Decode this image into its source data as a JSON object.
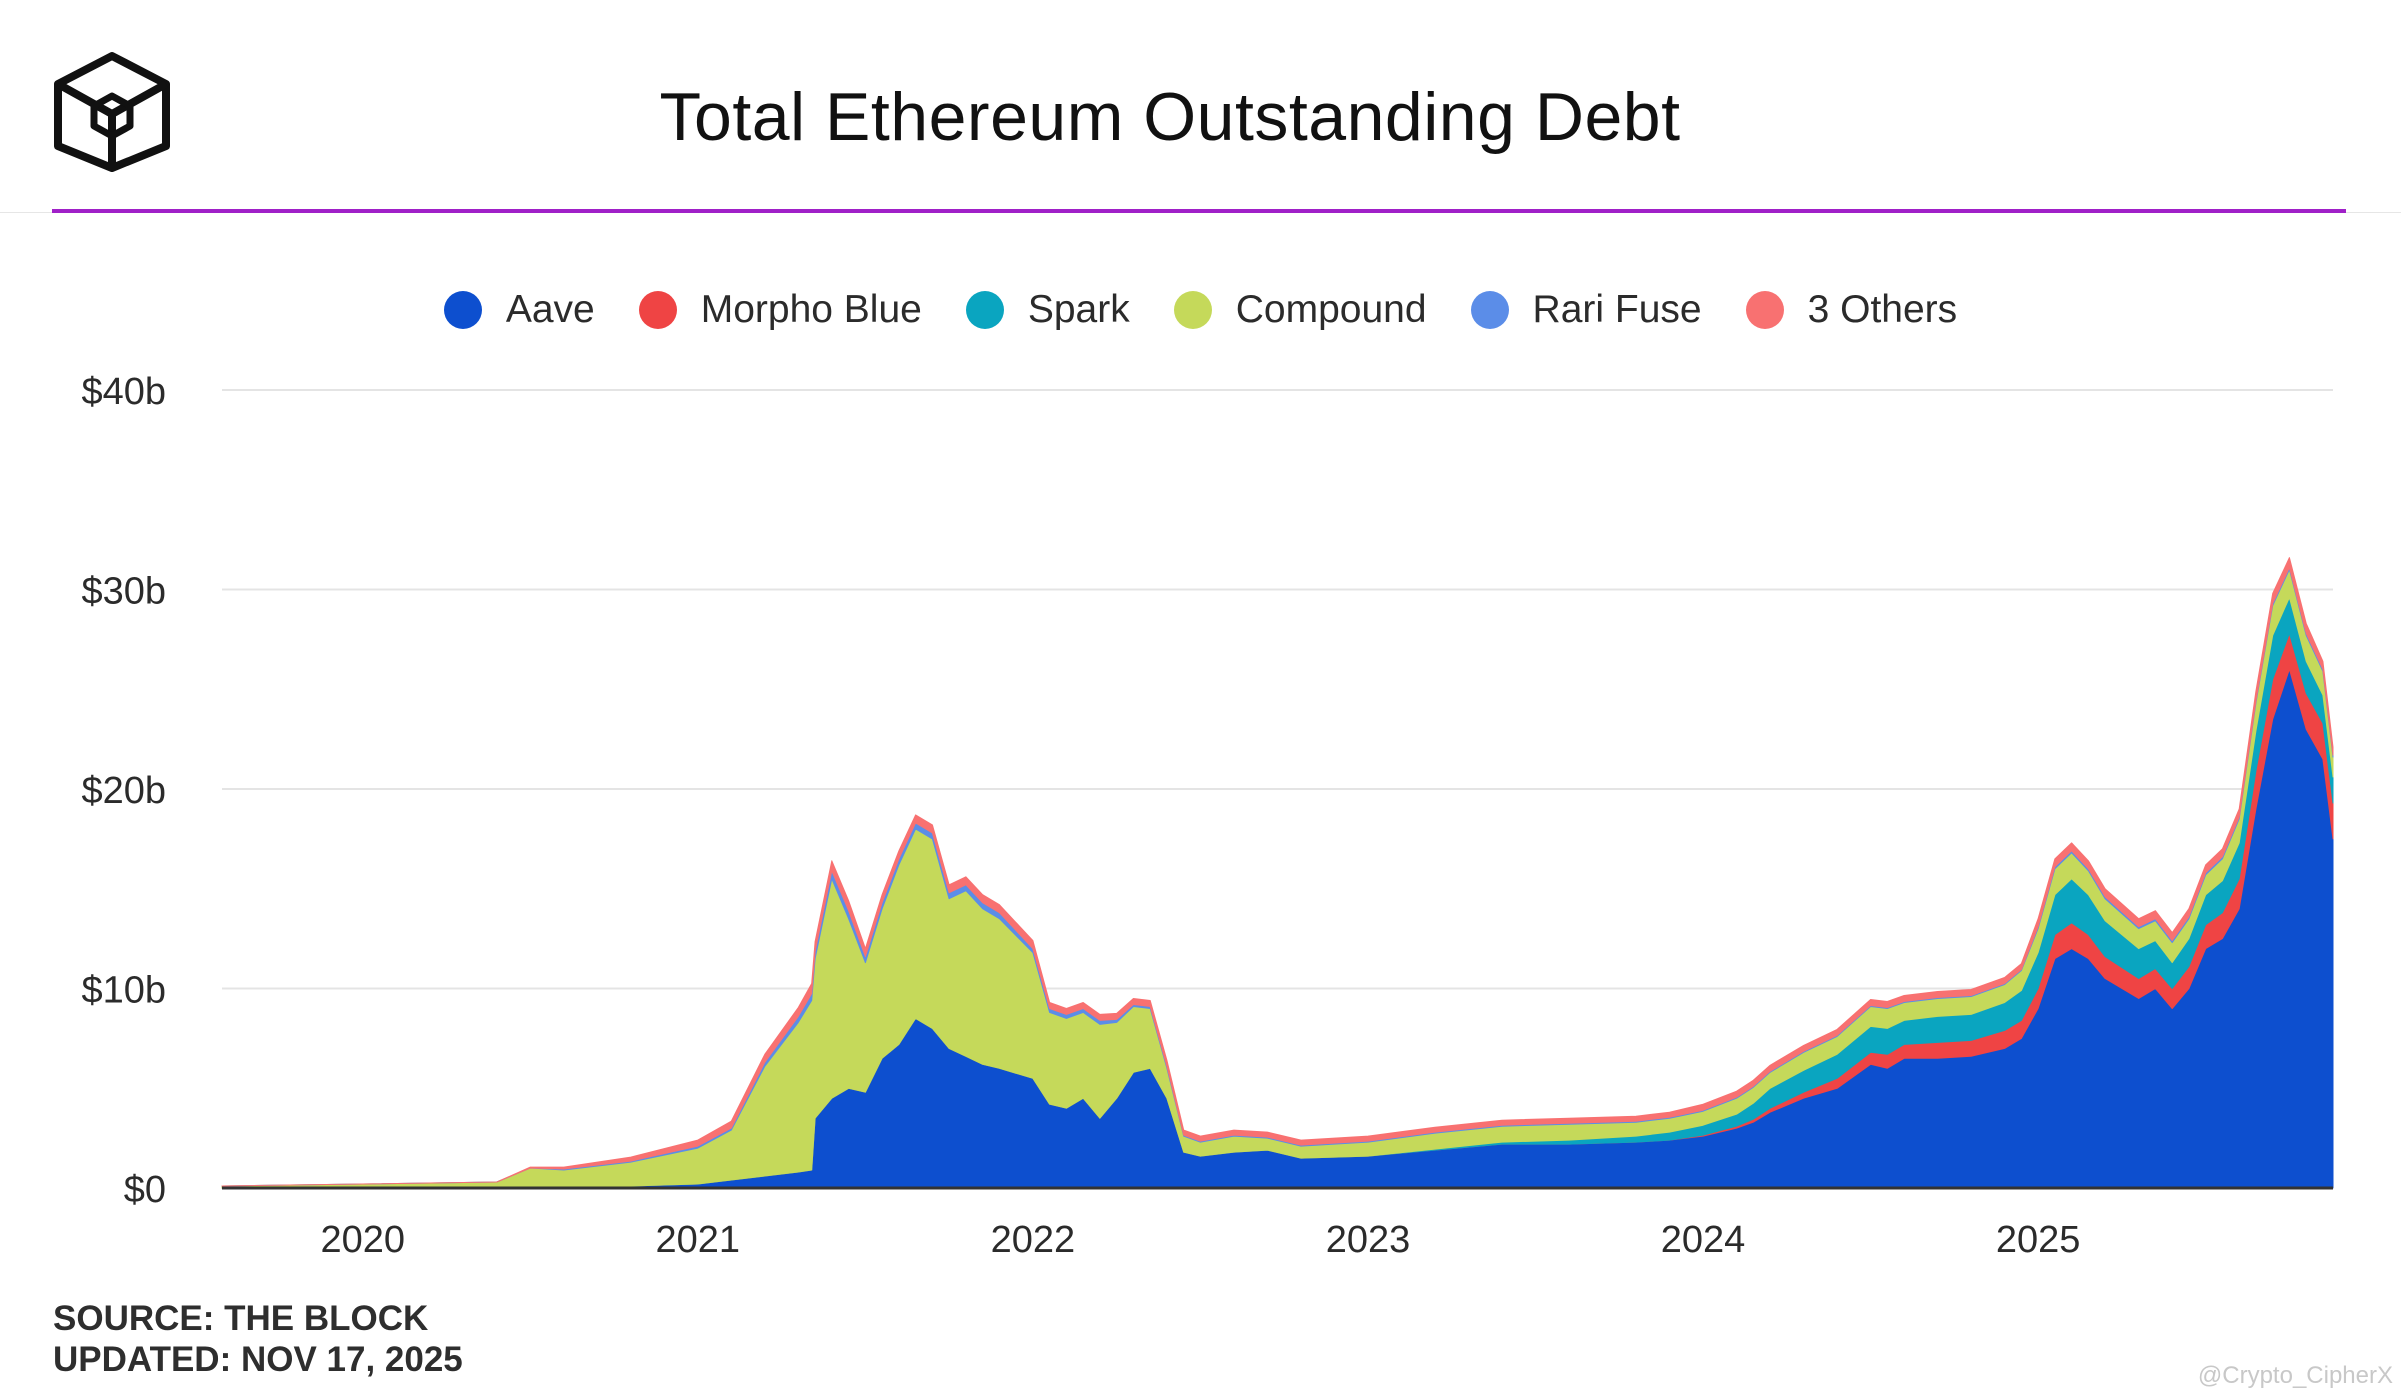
{
  "header": {
    "title": "Total Ethereum Outstanding Debt",
    "logo": "the-block-cube-logo",
    "accent_color": "#a020c8"
  },
  "legend": {
    "items": [
      {
        "label": "Aave",
        "color": "#0d4fcf"
      },
      {
        "label": "Morpho Blue",
        "color": "#ef4444"
      },
      {
        "label": "Spark",
        "color": "#0aa5c0"
      },
      {
        "label": "Compound",
        "color": "#c5d95a"
      },
      {
        "label": "Rari Fuse",
        "color": "#5b8de8"
      },
      {
        "label": "3 Others",
        "color": "#f87171"
      }
    ]
  },
  "footer": {
    "source": "SOURCE: THE BLOCK",
    "updated": "UPDATED: NOV 17, 2025"
  },
  "watermark": "@Crypto_CipherX",
  "chart_data": {
    "type": "area",
    "stacked": true,
    "title": "Total Ethereum Outstanding Debt",
    "xlabel": "",
    "ylabel": "",
    "ylim": [
      0,
      40
    ],
    "xlim": [
      2019.58,
      2025.88
    ],
    "y_unit": "billion USD",
    "yticks": [
      0,
      10,
      20,
      30,
      40
    ],
    "ytick_labels": [
      "$0",
      "$10b",
      "$20b",
      "$30b",
      "$40b"
    ],
    "xticks": [
      2020,
      2021,
      2022,
      2023,
      2024,
      2025
    ],
    "xtick_labels": [
      "2020",
      "2021",
      "2022",
      "2023",
      "2024",
      "2025"
    ],
    "grid": true,
    "legend_position": "top-center",
    "x": [
      2019.58,
      2020.0,
      2020.4,
      2020.5,
      2020.6,
      2020.8,
      2021.0,
      2021.1,
      2021.2,
      2021.3,
      2021.34,
      2021.35,
      2021.4,
      2021.45,
      2021.5,
      2021.55,
      2021.6,
      2021.65,
      2021.7,
      2021.75,
      2021.8,
      2021.85,
      2021.9,
      2022.0,
      2022.05,
      2022.1,
      2022.15,
      2022.2,
      2022.25,
      2022.3,
      2022.35,
      2022.4,
      2022.45,
      2022.5,
      2022.6,
      2022.7,
      2022.8,
      2023.0,
      2023.2,
      2023.4,
      2023.6,
      2023.8,
      2023.9,
      2024.0,
      2024.1,
      2024.15,
      2024.2,
      2024.3,
      2024.4,
      2024.5,
      2024.55,
      2024.6,
      2024.7,
      2024.8,
      2024.9,
      2024.95,
      2025.0,
      2025.05,
      2025.1,
      2025.15,
      2025.2,
      2025.3,
      2025.35,
      2025.4,
      2025.45,
      2025.5,
      2025.55,
      2025.6,
      2025.65,
      2025.7,
      2025.75,
      2025.8,
      2025.85,
      2025.88
    ],
    "series": [
      {
        "name": "Aave",
        "color": "#0d4fcf",
        "values": [
          0,
          0.05,
          0.1,
          0.1,
          0.1,
          0.1,
          0.2,
          0.4,
          0.6,
          0.8,
          0.9,
          3.5,
          4.5,
          5.0,
          4.8,
          6.5,
          7.2,
          8.5,
          8.0,
          7.0,
          6.6,
          6.2,
          6.0,
          5.5,
          4.2,
          4.0,
          4.5,
          3.5,
          4.5,
          5.8,
          6.0,
          4.5,
          1.8,
          1.6,
          1.8,
          1.9,
          1.5,
          1.6,
          1.9,
          2.2,
          2.2,
          2.3,
          2.4,
          2.6,
          3.0,
          3.3,
          3.8,
          4.5,
          5.0,
          6.2,
          6.0,
          6.5,
          6.5,
          6.6,
          7.0,
          7.5,
          9.0,
          11.5,
          12.0,
          11.5,
          10.5,
          9.5,
          10.0,
          9.0,
          10.0,
          12.0,
          12.5,
          14.0,
          19.0,
          23.5,
          26.0,
          23.0,
          21.5,
          17.5
        ]
      },
      {
        "name": "Morpho Blue",
        "color": "#ef4444",
        "values": [
          0,
          0,
          0,
          0,
          0,
          0,
          0,
          0,
          0,
          0,
          0,
          0,
          0,
          0,
          0,
          0,
          0,
          0,
          0,
          0,
          0,
          0,
          0,
          0,
          0,
          0,
          0,
          0,
          0,
          0,
          0,
          0,
          0,
          0,
          0,
          0,
          0,
          0,
          0,
          0,
          0,
          0,
          0,
          0.05,
          0.1,
          0.15,
          0.2,
          0.3,
          0.5,
          0.6,
          0.7,
          0.7,
          0.8,
          0.8,
          0.9,
          0.9,
          1.0,
          1.2,
          1.3,
          1.2,
          1.1,
          1.0,
          1.0,
          1.0,
          1.1,
          1.2,
          1.3,
          1.5,
          1.9,
          2.0,
          1.8,
          1.8,
          1.8,
          1.8
        ]
      },
      {
        "name": "Spark",
        "color": "#0aa5c0",
        "values": [
          0,
          0,
          0,
          0,
          0,
          0,
          0,
          0,
          0,
          0,
          0,
          0,
          0,
          0,
          0,
          0,
          0,
          0,
          0,
          0,
          0,
          0,
          0,
          0,
          0,
          0,
          0,
          0,
          0,
          0,
          0,
          0,
          0,
          0,
          0,
          0,
          0,
          0,
          0.05,
          0.1,
          0.2,
          0.3,
          0.4,
          0.5,
          0.6,
          0.8,
          1.0,
          1.1,
          1.2,
          1.3,
          1.3,
          1.2,
          1.3,
          1.3,
          1.4,
          1.5,
          1.8,
          2.0,
          2.2,
          2.0,
          1.8,
          1.5,
          1.4,
          1.3,
          1.4,
          1.5,
          1.6,
          1.8,
          2.0,
          2.2,
          1.8,
          1.6,
          1.4,
          1.3
        ]
      },
      {
        "name": "Compound",
        "color": "#c5d95a",
        "values": [
          0.1,
          0.15,
          0.2,
          0.9,
          0.8,
          1.2,
          1.8,
          2.5,
          5.5,
          7.5,
          8.5,
          8.0,
          11.0,
          8.5,
          6.5,
          7.5,
          9.0,
          9.5,
          9.5,
          7.5,
          8.3,
          7.8,
          7.5,
          6.3,
          4.6,
          4.5,
          4.3,
          4.7,
          3.8,
          3.3,
          3.0,
          1.5,
          0.8,
          0.7,
          0.8,
          0.6,
          0.6,
          0.7,
          0.8,
          0.8,
          0.8,
          0.7,
          0.7,
          0.7,
          0.8,
          0.8,
          0.8,
          0.9,
          0.9,
          1.0,
          1.0,
          0.9,
          0.9,
          0.9,
          0.9,
          1.0,
          1.2,
          1.3,
          1.3,
          1.2,
          1.1,
          1.0,
          1.0,
          1.0,
          1.0,
          1.0,
          1.1,
          1.2,
          1.4,
          1.5,
          1.4,
          1.3,
          1.2,
          1.0
        ]
      },
      {
        "name": "Rari Fuse",
        "color": "#5b8de8",
        "values": [
          0,
          0,
          0,
          0,
          0.05,
          0.05,
          0.1,
          0.1,
          0.2,
          0.3,
          0.35,
          0.35,
          0.4,
          0.4,
          0.3,
          0.3,
          0.3,
          0.3,
          0.3,
          0.3,
          0.3,
          0.3,
          0.3,
          0.2,
          0.2,
          0.2,
          0.2,
          0.2,
          0.15,
          0.1,
          0.1,
          0.1,
          0.05,
          0.05,
          0.05,
          0.05,
          0.05,
          0.05,
          0.05,
          0.05,
          0.05,
          0.05,
          0.05,
          0.05,
          0.05,
          0.05,
          0.05,
          0.05,
          0.05,
          0.05,
          0.05,
          0.05,
          0.05,
          0.05,
          0.05,
          0.05,
          0.1,
          0.1,
          0.1,
          0.1,
          0.1,
          0.1,
          0.1,
          0.1,
          0.1,
          0.1,
          0.1,
          0.1,
          0.1,
          0.1,
          0.1,
          0.1,
          0.1,
          0.1
        ]
      },
      {
        "name": "3 Others",
        "color": "#f87171",
        "values": [
          0,
          0,
          0,
          0.05,
          0.1,
          0.2,
          0.3,
          0.35,
          0.4,
          0.45,
          0.5,
          0.5,
          0.5,
          0.5,
          0.4,
          0.4,
          0.4,
          0.4,
          0.4,
          0.4,
          0.4,
          0.4,
          0.4,
          0.4,
          0.3,
          0.3,
          0.3,
          0.3,
          0.3,
          0.3,
          0.3,
          0.3,
          0.25,
          0.25,
          0.25,
          0.25,
          0.25,
          0.25,
          0.25,
          0.25,
          0.25,
          0.25,
          0.25,
          0.3,
          0.3,
          0.3,
          0.3,
          0.3,
          0.3,
          0.3,
          0.3,
          0.3,
          0.3,
          0.3,
          0.3,
          0.3,
          0.4,
          0.4,
          0.4,
          0.4,
          0.4,
          0.4,
          0.4,
          0.4,
          0.4,
          0.4,
          0.4,
          0.4,
          0.5,
          0.5,
          0.5,
          0.5,
          0.4,
          0.4
        ]
      }
    ]
  }
}
